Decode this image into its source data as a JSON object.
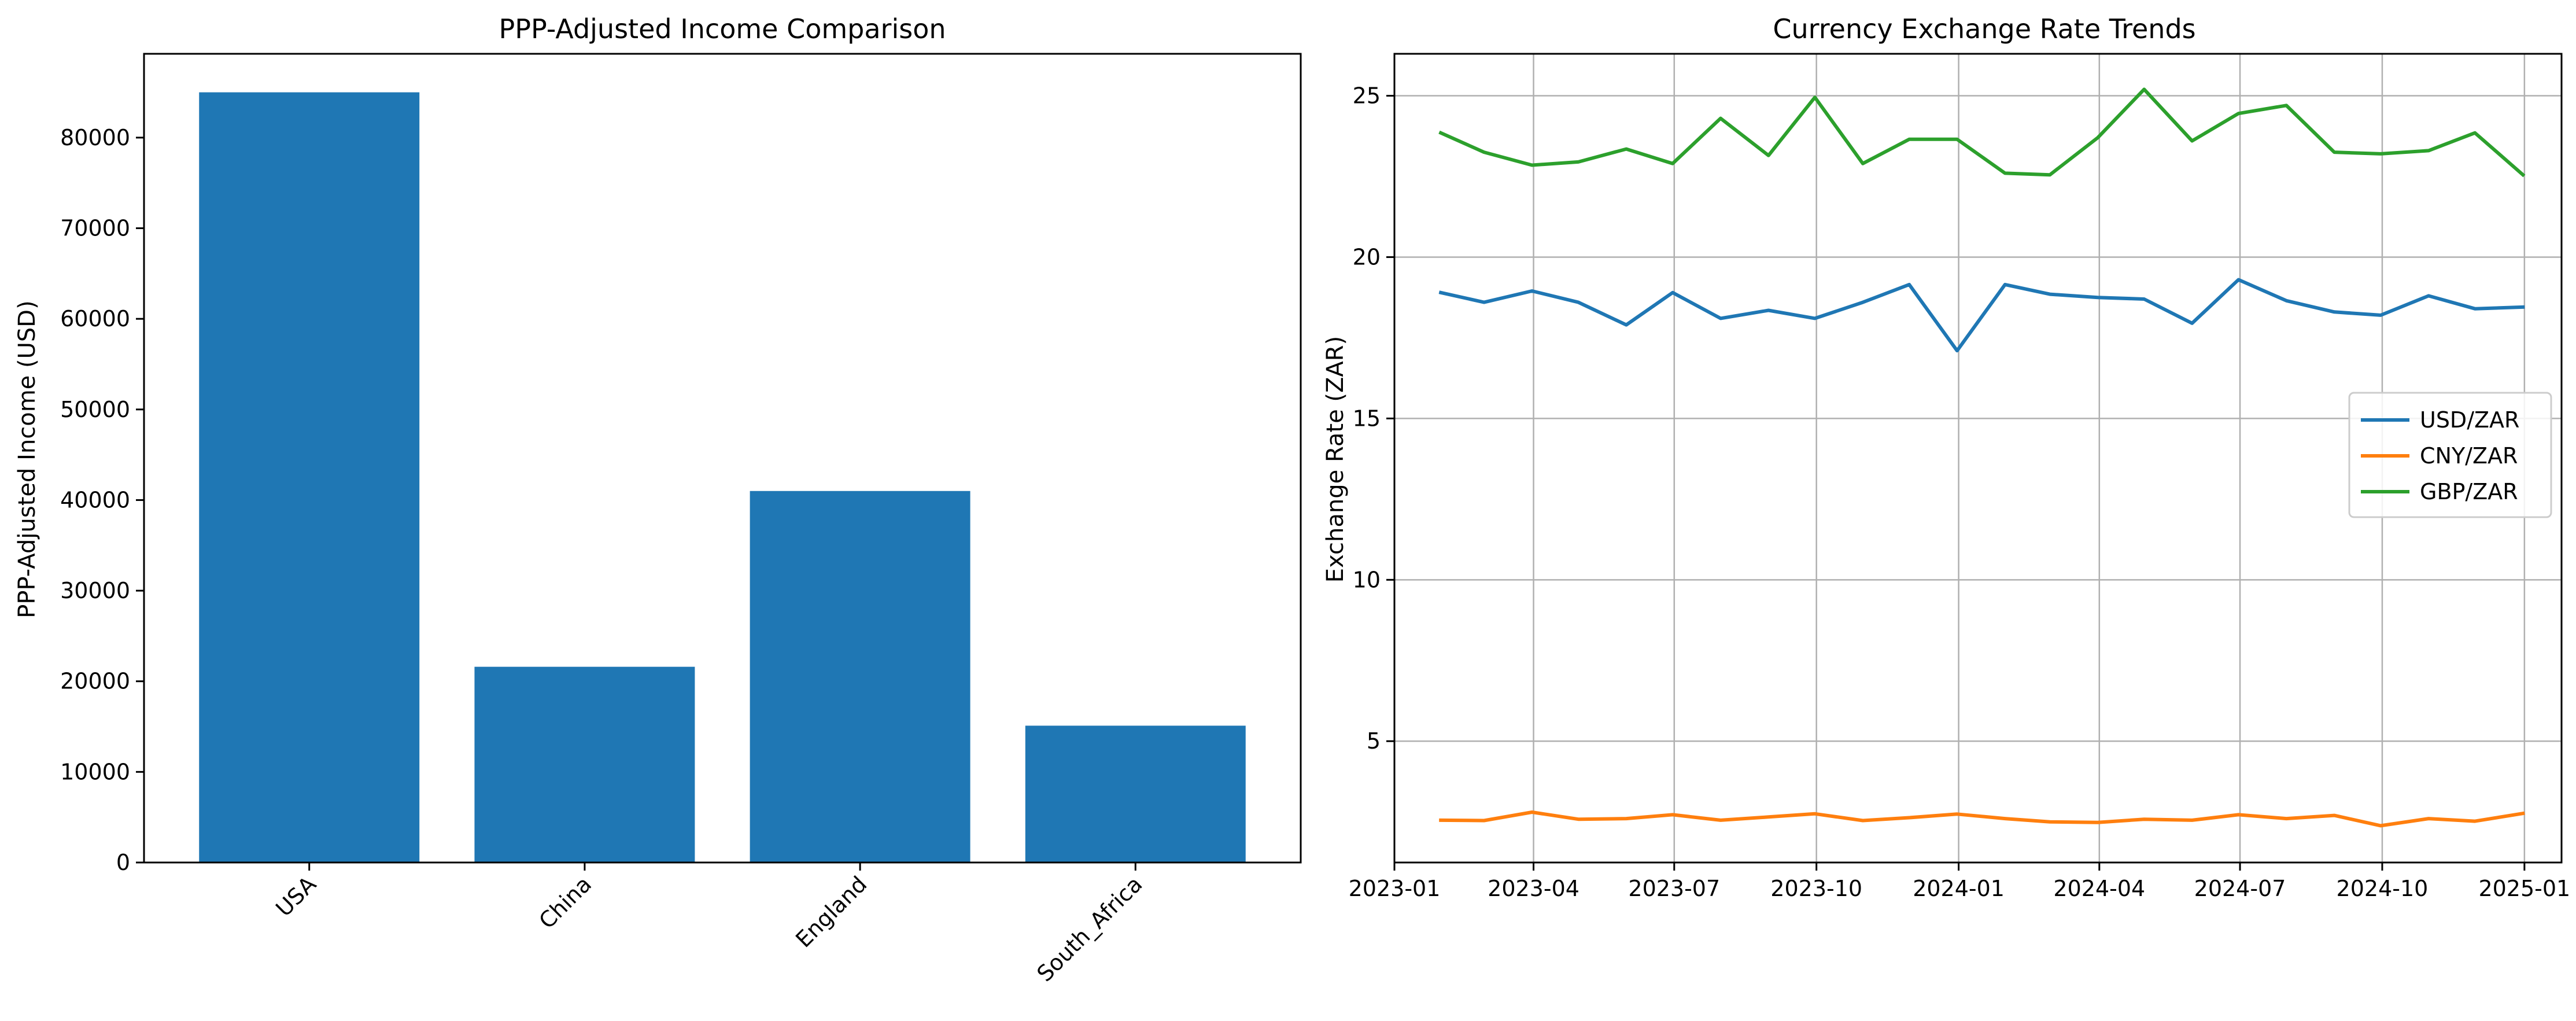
{
  "chart_data": [
    {
      "type": "bar",
      "title": "PPP-Adjusted Income Comparison",
      "xlabel": "",
      "ylabel": "PPP-Adjusted Income (USD)",
      "categories": [
        "USA",
        "China",
        "England",
        "South_Africa"
      ],
      "values": [
        85000,
        21600,
        41000,
        15100
      ],
      "ylim": [
        0,
        89250
      ],
      "yticks": [
        0,
        10000,
        20000,
        30000,
        40000,
        50000,
        60000,
        70000,
        80000
      ],
      "xtick_rotation": "45 degrees",
      "grid": false,
      "colors": {
        "bar": "#1f77b4"
      }
    },
    {
      "type": "line",
      "title": "Currency Exchange Rate Trends",
      "xlabel": "",
      "ylabel": "Exchange Rate (ZAR)",
      "x": [
        "2023-01-31",
        "2023-02-28",
        "2023-03-31",
        "2023-04-30",
        "2023-05-31",
        "2023-06-30",
        "2023-07-31",
        "2023-08-31",
        "2023-09-30",
        "2023-10-31",
        "2023-11-30",
        "2023-12-31",
        "2024-01-31",
        "2024-02-29",
        "2024-03-31",
        "2024-04-30",
        "2024-05-31",
        "2024-06-30",
        "2024-07-31",
        "2024-08-31",
        "2024-09-30",
        "2024-10-31",
        "2024-11-30",
        "2024-12-31"
      ],
      "xticks": [
        "2023-01",
        "2023-04",
        "2023-07",
        "2023-10",
        "2024-01",
        "2024-04",
        "2024-07",
        "2024-10",
        "2025-01"
      ],
      "xlim": [
        "2023-01-01",
        "2025-01-25"
      ],
      "ylim": [
        1.24,
        26.3
      ],
      "yticks": [
        5,
        10,
        15,
        20,
        25
      ],
      "grid": true,
      "legend_position": "center-right",
      "series": [
        {
          "name": "USD/ZAR",
          "color": "#1f77b4",
          "values": [
            18.9,
            18.6,
            18.95,
            18.6,
            17.9,
            18.9,
            18.1,
            18.35,
            18.1,
            18.6,
            19.15,
            17.1,
            19.15,
            18.85,
            18.75,
            18.7,
            17.95,
            19.3,
            18.65,
            18.3,
            18.2,
            18.8,
            18.4,
            18.45
          ]
        },
        {
          "name": "CNY/ZAR",
          "color": "#ff7f0e",
          "values": [
            2.55,
            2.54,
            2.8,
            2.58,
            2.6,
            2.72,
            2.55,
            2.65,
            2.75,
            2.54,
            2.63,
            2.74,
            2.6,
            2.5,
            2.48,
            2.58,
            2.55,
            2.72,
            2.6,
            2.7,
            2.38,
            2.6,
            2.52,
            2.76
          ]
        },
        {
          "name": "GBP/ZAR",
          "color": "#2ca02c",
          "values": [
            23.85,
            23.25,
            22.85,
            22.95,
            23.35,
            22.9,
            24.3,
            23.15,
            24.95,
            22.9,
            23.65,
            23.65,
            22.6,
            22.55,
            23.7,
            25.2,
            23.6,
            24.45,
            24.7,
            23.25,
            23.2,
            23.3,
            23.85,
            22.55
          ]
        }
      ]
    }
  ]
}
